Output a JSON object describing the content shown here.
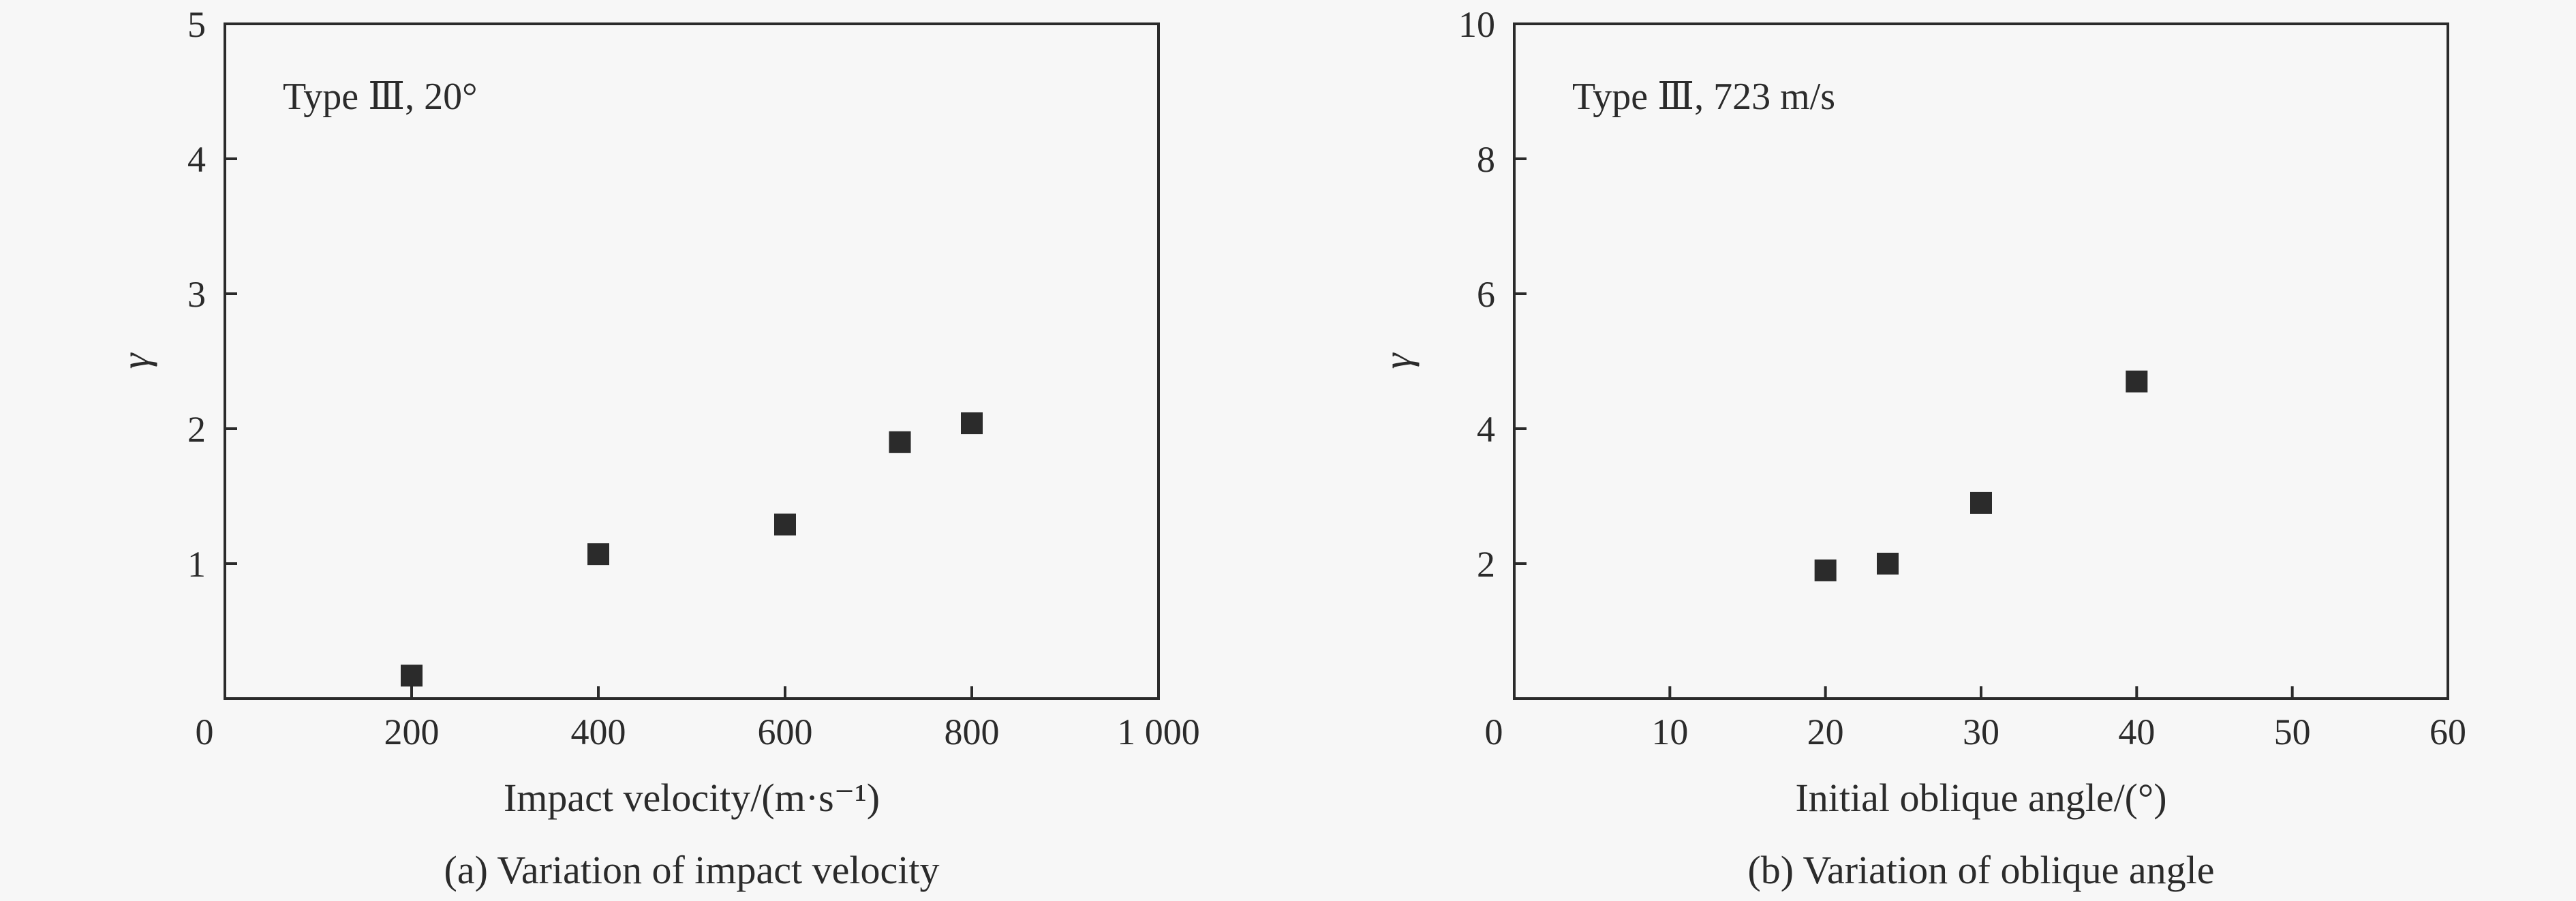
{
  "chart_data": [
    {
      "type": "scatter",
      "annotation": "Type Ⅲ, 20°",
      "xlabel": "Impact velocity/(m·s⁻¹)",
      "ylabel": "γ",
      "caption": "(a) Variation of impact velocity",
      "xlim": [
        0,
        1000
      ],
      "ylim": [
        0,
        5
      ],
      "xticks": [
        0,
        200,
        400,
        600,
        800,
        1000
      ],
      "xtick_labels": [
        "0",
        "200",
        "400",
        "600",
        "800",
        "1 000"
      ],
      "yticks": [
        1,
        2,
        3,
        4,
        5
      ],
      "ytick_labels": [
        "1",
        "2",
        "3",
        "4",
        "5"
      ],
      "grid": false,
      "marker": "filled-square",
      "series": [
        {
          "x": [
            200,
            400,
            600,
            723,
            800
          ],
          "y": [
            0.17,
            1.07,
            1.29,
            1.9,
            2.04
          ]
        }
      ]
    },
    {
      "type": "scatter",
      "annotation": "Type Ⅲ, 723 m/s",
      "xlabel": "Initial oblique angle/(°)",
      "ylabel": "γ",
      "caption": "(b) Variation of oblique angle",
      "xlim": [
        0,
        60
      ],
      "ylim": [
        0,
        10
      ],
      "xticks": [
        0,
        10,
        20,
        30,
        40,
        50,
        60
      ],
      "xtick_labels": [
        "0",
        "10",
        "20",
        "30",
        "40",
        "50",
        "60"
      ],
      "yticks": [
        2,
        4,
        6,
        8,
        10
      ],
      "ytick_labels": [
        "2",
        "4",
        "6",
        "8",
        "10"
      ],
      "grid": false,
      "marker": "filled-square",
      "series": [
        {
          "x": [
            20,
            24,
            30,
            40
          ],
          "y": [
            1.9,
            2.0,
            2.9,
            4.7
          ]
        }
      ]
    }
  ]
}
